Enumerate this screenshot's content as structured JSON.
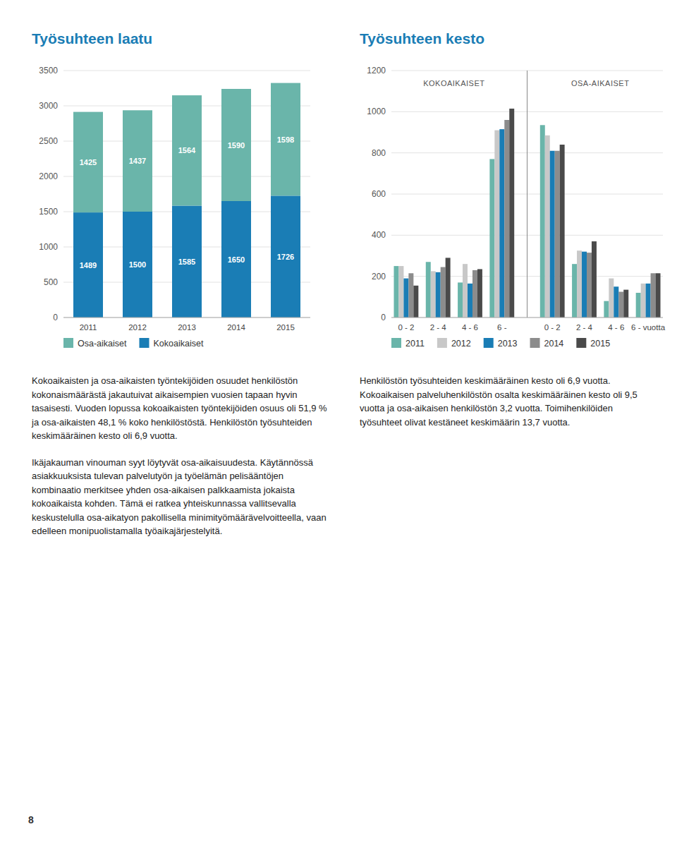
{
  "chart_data": [
    {
      "type": "bar",
      "title": "Työsuhteen laatu",
      "stacked": true,
      "data_labels": true,
      "grid": true,
      "legend": "bottom",
      "categories": [
        "2011",
        "2012",
        "2013",
        "2014",
        "2015"
      ],
      "series": [
        {
          "name": "Kokoaikaiset",
          "color": "#1a7db5",
          "values": [
            1489,
            1500,
            1585,
            1650,
            1726
          ]
        },
        {
          "name": "Osa-aikaiset",
          "color": "#6ab5aa",
          "values": [
            1425,
            1437,
            1564,
            1590,
            1598
          ]
        }
      ],
      "ylim": [
        0,
        3500
      ],
      "yticks": [
        0,
        500,
        1000,
        1500,
        2000,
        2500,
        3000,
        3500
      ]
    },
    {
      "type": "bar",
      "title": "Työsuhteen kesto",
      "grid": true,
      "legend": "bottom",
      "categories": [
        "0 - 2",
        "2 - 4",
        "4 - 6",
        "6 -",
        "0 - 2",
        "2 - 4",
        "4 - 6",
        "6 - vuotta"
      ],
      "series": [
        {
          "name": "2011",
          "color": "#6ab5aa",
          "values": [
            250,
            270,
            170,
            770,
            935,
            260,
            80,
            120
          ]
        },
        {
          "name": "2012",
          "color": "#c8c8c8",
          "values": [
            250,
            225,
            260,
            910,
            885,
            325,
            190,
            165
          ]
        },
        {
          "name": "2013",
          "color": "#1a7db5",
          "values": [
            190,
            220,
            165,
            915,
            810,
            320,
            150,
            165
          ]
        },
        {
          "name": "2014",
          "color": "#8c8c8c",
          "values": [
            215,
            245,
            230,
            960,
            810,
            315,
            125,
            215
          ]
        },
        {
          "name": "2015",
          "color": "#4a4a4a",
          "values": [
            155,
            290,
            235,
            1015,
            840,
            370,
            135,
            215
          ]
        }
      ],
      "annotations": [
        {
          "text": "KOKOAIKAISET"
        },
        {
          "text": "OSA-AIKAISET"
        }
      ],
      "ylim": [
        0,
        1200
      ],
      "yticks": [
        0,
        200,
        400,
        600,
        800,
        1000,
        1200
      ]
    }
  ],
  "paragraphs": [
    "Kokoaikaisten ja osa-aikaisten työntekijöiden osuudet henkilöstön kokonaismäärästä jakautuivat aikaisempien vuosien tapaan hyvin tasaisesti. Vuoden lopussa kokoaikaisten työntekijöiden osuus oli 51,9 % ja osa-aikaisten 48,1 % koko henkilöstöstä. Henkilöstön työsuhteiden keskimääräinen kesto oli 6,9 vuotta.",
    "Ikäjakauman vinouman syyt löytyvät osa-aikaisuudesta. Käytännössä asiakkuuksista tulevan palvelutyön ja työelämän pelisääntöjen kombinaatio merkitsee yhden osa-aikaisen palkkaamista jokaista kokoaikaista kohden. Tämä ei ratkea yhteiskunnassa vallitsevalla keskustelulla osa-aikatyon pakollisella minimityömäärävelvoitteella, vaan edelleen monipuolistamalla työaikajärjestelyitä.",
    "Henkilöstön työsuhteiden keskimääräinen kesto oli 6,9 vuotta. Kokoaikaisen palveluhenkilöstön osalta keskimääräinen kesto oli 9,5 vuotta ja osa-aikaisen henkilöstön 3,2 vuotta. Toimihenkilöiden työsuhteet olivat kestäneet keskimäärin 13,7 vuotta."
  ],
  "page_number": "8"
}
